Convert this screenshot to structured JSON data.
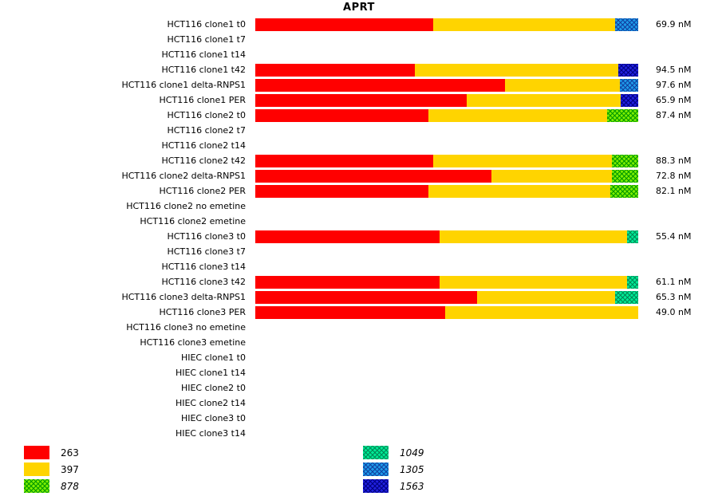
{
  "title": "APRT",
  "series": {
    "263": {
      "label": "263",
      "base": "#ff0000",
      "line": "#ff0000",
      "pattern": "solid",
      "italic": false
    },
    "397": {
      "label": "397",
      "base": "#ffd400",
      "line": "#ffd400",
      "pattern": "solid",
      "italic": false
    },
    "878": {
      "label": "878",
      "base": "#7cec00",
      "line": "#009900",
      "pattern": "crosshatch",
      "italic": true
    },
    "1049": {
      "label": "1049",
      "base": "#00e995",
      "line": "#008855",
      "pattern": "crosshatch",
      "italic": true
    },
    "1305": {
      "label": "1305",
      "base": "#1e9ae8",
      "line": "#1040a0",
      "pattern": "crosshatch",
      "italic": true
    },
    "1563": {
      "label": "1563",
      "base": "#2020dd",
      "line": "#000080",
      "pattern": "crosshatch",
      "italic": true
    }
  },
  "legend_columns": [
    [
      "263",
      "397",
      "878"
    ],
    [
      "1049",
      "1305",
      "1563"
    ]
  ],
  "chart_data": {
    "type": "bar",
    "orientation": "horizontal",
    "stacked": true,
    "title": "APRT",
    "x_domain": [
      0,
      1
    ],
    "value_unit": "nM",
    "series_names": [
      "263",
      "397",
      "878",
      "1049",
      "1305",
      "1563"
    ],
    "rows": [
      {
        "label": "HCT116 clone1 t0",
        "value": "69.9 nM",
        "segments": [
          [
            "263",
            0.465
          ],
          [
            "397",
            0.475
          ],
          [
            "1305",
            0.06
          ]
        ]
      },
      {
        "label": "HCT116 clone1 t7",
        "value": "",
        "segments": []
      },
      {
        "label": "HCT116 clone1 t14",
        "value": "",
        "segments": []
      },
      {
        "label": "HCT116 clone1 t42",
        "value": "94.5 nM",
        "segments": [
          [
            "263",
            0.417
          ],
          [
            "397",
            0.531
          ],
          [
            "1563",
            0.052
          ]
        ]
      },
      {
        "label": "HCT116 clone1 delta-RNPS1",
        "value": "97.6 nM",
        "segments": [
          [
            "263",
            0.652
          ],
          [
            "397",
            0.3
          ],
          [
            "1305",
            0.048
          ]
        ]
      },
      {
        "label": "HCT116 clone1 PER",
        "value": "65.9 nM",
        "segments": [
          [
            "263",
            0.552
          ],
          [
            "397",
            0.402
          ],
          [
            "1563",
            0.046
          ]
        ]
      },
      {
        "label": "HCT116 clone2 t0",
        "value": "87.4 nM",
        "segments": [
          [
            "263",
            0.452
          ],
          [
            "397",
            0.467
          ],
          [
            "878",
            0.081
          ]
        ]
      },
      {
        "label": "HCT116 clone2 t7",
        "value": "",
        "segments": []
      },
      {
        "label": "HCT116 clone2 t14",
        "value": "",
        "segments": []
      },
      {
        "label": "HCT116 clone2 t42",
        "value": "88.3 nM",
        "segments": [
          [
            "263",
            0.465
          ],
          [
            "397",
            0.466
          ],
          [
            "878",
            0.069
          ]
        ]
      },
      {
        "label": "HCT116 clone2 delta-RNPS1",
        "value": "72.8 nM",
        "segments": [
          [
            "263",
            0.617
          ],
          [
            "397",
            0.314
          ],
          [
            "878",
            0.069
          ]
        ]
      },
      {
        "label": "HCT116 clone2 PER",
        "value": "82.1 nM",
        "segments": [
          [
            "263",
            0.452
          ],
          [
            "397",
            0.475
          ],
          [
            "878",
            0.073
          ]
        ]
      },
      {
        "label": "HCT116 clone2 no emetine",
        "value": "",
        "segments": []
      },
      {
        "label": "HCT116 clone2 emetine",
        "value": "",
        "segments": []
      },
      {
        "label": "HCT116 clone3 t0",
        "value": "55.4 nM",
        "segments": [
          [
            "263",
            0.481
          ],
          [
            "397",
            0.49
          ],
          [
            "1049",
            0.029
          ]
        ]
      },
      {
        "label": "HCT116 clone3 t7",
        "value": "",
        "segments": []
      },
      {
        "label": "HCT116 clone3 t14",
        "value": "",
        "segments": []
      },
      {
        "label": "HCT116 clone3 t42",
        "value": "61.1 nM",
        "segments": [
          [
            "263",
            0.481
          ],
          [
            "397",
            0.49
          ],
          [
            "1049",
            0.029
          ]
        ]
      },
      {
        "label": "HCT116 clone3 delta-RNPS1",
        "value": "65.3 nM",
        "segments": [
          [
            "263",
            0.579
          ],
          [
            "397",
            0.361
          ],
          [
            "1049",
            0.06
          ]
        ]
      },
      {
        "label": "HCT116 clone3 PER",
        "value": "49.0 nM",
        "segments": [
          [
            "263",
            0.496
          ],
          [
            "397",
            0.504
          ]
        ]
      },
      {
        "label": "HCT116 clone3 no emetine",
        "value": "",
        "segments": []
      },
      {
        "label": "HCT116 clone3 emetine",
        "value": "",
        "segments": []
      },
      {
        "label": "HIEC clone1 t0",
        "value": "",
        "segments": []
      },
      {
        "label": "HIEC clone1 t14",
        "value": "",
        "segments": []
      },
      {
        "label": "HIEC clone2 t0",
        "value": "",
        "segments": []
      },
      {
        "label": "HIEC clone2 t14",
        "value": "",
        "segments": []
      },
      {
        "label": "HIEC clone3 t0",
        "value": "",
        "segments": []
      },
      {
        "label": "HIEC clone3 t14",
        "value": "",
        "segments": []
      }
    ]
  }
}
